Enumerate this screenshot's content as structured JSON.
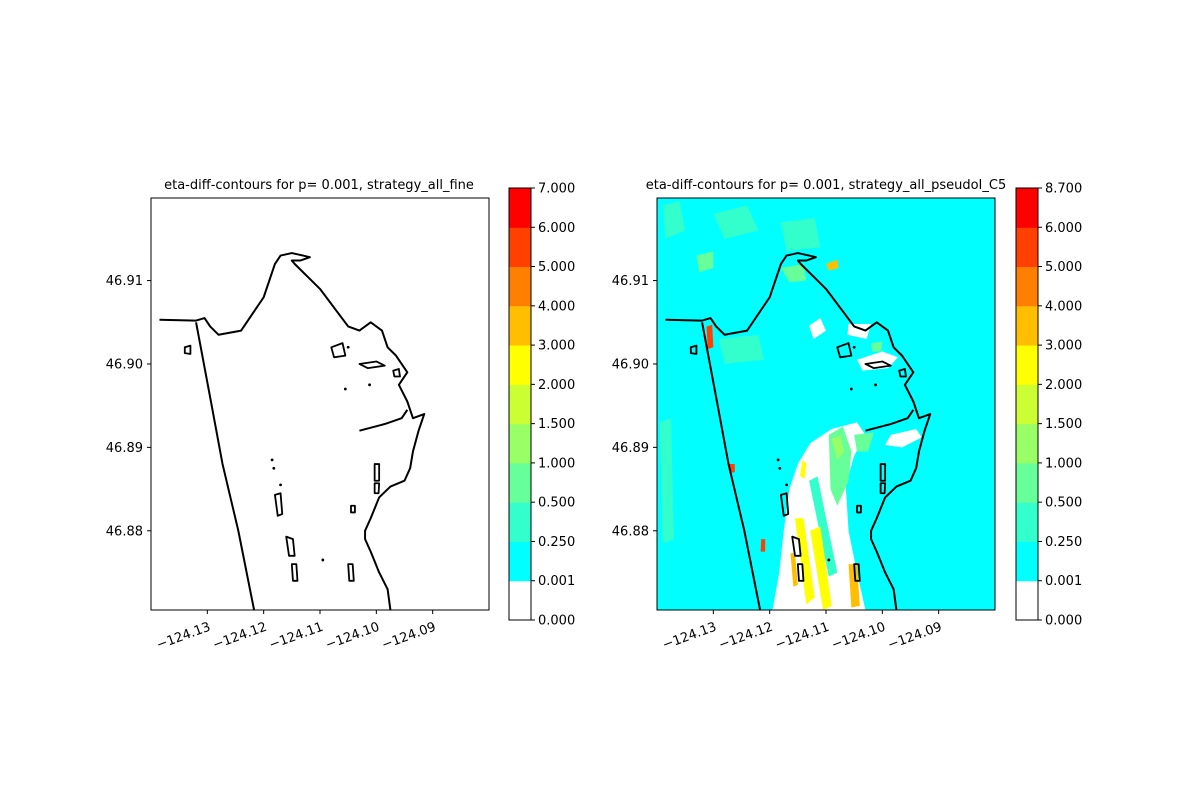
{
  "chart_data": [
    {
      "type": "heatmap",
      "title": "eta-diff-contours for p= 0.001, strategy_all_fine",
      "xlabel": "",
      "ylabel": "",
      "xlim": [
        -124.14,
        -124.08
      ],
      "ylim": [
        46.8705,
        46.9199
      ],
      "xticks": [
        -124.13,
        -124.12,
        -124.11,
        -124.1,
        -124.09
      ],
      "xtick_labels": [
        "−124.13",
        "−124.12",
        "−124.11",
        "−124.10",
        "−124.09"
      ],
      "yticks": [
        46.88,
        46.89,
        46.9,
        46.91
      ],
      "ytick_labels": [
        "46.88",
        "46.89",
        "46.90",
        "46.91"
      ],
      "colorbar": {
        "levels": [
          0.0,
          0.001,
          0.25,
          0.5,
          1.0,
          1.5,
          2.0,
          3.0,
          4.0,
          5.0,
          6.0,
          7.0
        ],
        "labels": [
          "0.000",
          "0.001",
          "0.250",
          "0.500",
          "1.000",
          "1.500",
          "2.000",
          "3.000",
          "4.000",
          "5.000",
          "6.000",
          "7.000"
        ],
        "colors": [
          "#ffffff",
          "#00ffff",
          "#33ffcc",
          "#66ff99",
          "#99ff66",
          "#ccff33",
          "#ffff00",
          "#ffbf00",
          "#ff7f00",
          "#ff4000",
          "#ff0000"
        ]
      },
      "background_level": 0.0,
      "regions": []
    },
    {
      "type": "heatmap",
      "title": "eta-diff-contours for p= 0.001, strategy_all_pseudoI_C5",
      "xlabel": "",
      "ylabel": "",
      "xlim": [
        -124.14,
        -124.08
      ],
      "ylim": [
        46.8705,
        46.9199
      ],
      "xticks": [
        -124.13,
        -124.12,
        -124.11,
        -124.1,
        -124.09
      ],
      "xtick_labels": [
        "−124.13",
        "−124.12",
        "−124.11",
        "−124.10",
        "−124.09"
      ],
      "yticks": [
        46.88,
        46.89,
        46.9,
        46.91
      ],
      "ytick_labels": [
        "46.88",
        "46.89",
        "46.90",
        "46.91"
      ],
      "colorbar": {
        "levels": [
          0.0,
          0.001,
          0.25,
          0.5,
          1.0,
          1.5,
          2.0,
          3.0,
          4.0,
          5.0,
          6.0,
          8.7
        ],
        "labels": [
          "0.000",
          "0.001",
          "0.250",
          "0.500",
          "1.000",
          "1.500",
          "2.000",
          "3.000",
          "4.000",
          "5.000",
          "6.000",
          "8.700"
        ],
        "colors": [
          "#ffffff",
          "#00ffff",
          "#33ffcc",
          "#66ff99",
          "#99ff66",
          "#ccff33",
          "#ffff00",
          "#ffbf00",
          "#ff7f00",
          "#ff4000",
          "#ff0000"
        ]
      },
      "background_level": 0.1,
      "regions": [
        {
          "level": 0.0,
          "points": [
            [
              -124.1195,
              46.8705
            ],
            [
              -124.1183,
              46.875
            ],
            [
              -124.1175,
              46.88
            ],
            [
              -124.1165,
              46.885
            ],
            [
              -124.115,
              46.888
            ],
            [
              -124.1128,
              46.8905
            ],
            [
              -124.109,
              46.8922
            ],
            [
              -124.1045,
              46.893
            ],
            [
              -124.103,
              46.8915
            ],
            [
              -124.105,
              46.889
            ],
            [
              -124.1065,
              46.8855
            ],
            [
              -124.106,
              46.88
            ],
            [
              -124.1045,
              46.875
            ],
            [
              -124.103,
              46.8705
            ]
          ]
        },
        {
          "level": 0.0,
          "points": [
            [
              -124.1045,
              46.9005
            ],
            [
              -124.1,
              46.9015
            ],
            [
              -124.0972,
              46.9008
            ],
            [
              -124.099,
              46.8995
            ],
            [
              -124.1035,
              46.8992
            ]
          ]
        },
        {
          "level": 0.0,
          "points": [
            [
              -124.0985,
              46.8915
            ],
            [
              -124.094,
              46.8922
            ],
            [
              -124.093,
              46.8912
            ],
            [
              -124.0965,
              46.89
            ],
            [
              -124.0995,
              46.8903
            ]
          ]
        },
        {
          "level": 0.0,
          "points": [
            [
              -124.106,
              46.9048
            ],
            [
              -124.102,
              46.9048
            ],
            [
              -124.1028,
              46.903
            ],
            [
              -124.1062,
              46.9035
            ]
          ]
        },
        {
          "level": 0.0,
          "points": [
            [
              -124.113,
              46.9046
            ],
            [
              -124.111,
              46.9055
            ],
            [
              -124.11,
              46.904
            ],
            [
              -124.1122,
              46.903
            ]
          ]
        },
        {
          "level": 0.25,
          "points": [
            [
              -124.139,
              46.919
            ],
            [
              -124.136,
              46.9195
            ],
            [
              -124.135,
              46.916
            ],
            [
              -124.1385,
              46.915
            ]
          ]
        },
        {
          "level": 0.25,
          "points": [
            [
              -124.13,
              46.918
            ],
            [
              -124.124,
              46.919
            ],
            [
              -124.122,
              46.916
            ],
            [
              -124.128,
              46.915
            ]
          ]
        },
        {
          "level": 0.25,
          "points": [
            [
              -124.118,
              46.917
            ],
            [
              -124.112,
              46.9175
            ],
            [
              -124.111,
              46.914
            ],
            [
              -124.117,
              46.9135
            ]
          ]
        },
        {
          "level": 0.25,
          "points": [
            [
              -124.129,
              46.903
            ],
            [
              -124.122,
              46.9035
            ],
            [
              -124.121,
              46.9005
            ],
            [
              -124.128,
              46.9
            ]
          ]
        },
        {
          "level": 0.25,
          "points": [
            [
              -124.1395,
              46.893
            ],
            [
              -124.1375,
              46.8935
            ],
            [
              -124.137,
              46.879
            ],
            [
              -124.139,
              46.8785
            ]
          ]
        },
        {
          "level": 0.25,
          "points": [
            [
              -124.113,
              46.886
            ],
            [
              -124.1115,
              46.8865
            ],
            [
              -124.108,
              46.875
            ],
            [
              -124.1095,
              46.8745
            ]
          ]
        },
        {
          "level": 0.5,
          "points": [
            [
              -124.1095,
              46.8915
            ],
            [
              -124.107,
              46.8925
            ],
            [
              -124.1055,
              46.8895
            ],
            [
              -124.106,
              46.886
            ],
            [
              -124.108,
              46.883
            ],
            [
              -124.1092,
              46.885
            ]
          ]
        },
        {
          "level": 0.5,
          "points": [
            [
              -124.105,
              46.8915
            ],
            [
              -124.1015,
              46.8918
            ],
            [
              -124.1025,
              46.8895
            ],
            [
              -124.1045,
              46.8895
            ]
          ]
        },
        {
          "level": 0.5,
          "points": [
            [
              -124.118,
              46.9115
            ],
            [
              -124.114,
              46.912
            ],
            [
              -124.1135,
              46.91
            ],
            [
              -124.1165,
              46.9098
            ]
          ]
        },
        {
          "level": 0.5,
          "points": [
            [
              -124.133,
              46.913
            ],
            [
              -124.13,
              46.9135
            ],
            [
              -124.13,
              46.9115
            ],
            [
              -124.1325,
              46.911
            ]
          ]
        },
        {
          "level": 0.5,
          "points": [
            [
              -124.102,
              46.9025
            ],
            [
              -124.1,
              46.9027
            ],
            [
              -124.1002,
              46.9015
            ],
            [
              -124.1018,
              46.9015
            ]
          ]
        },
        {
          "level": 1.0,
          "points": [
            [
              -124.109,
              46.891
            ],
            [
              -124.1075,
              46.8915
            ],
            [
              -124.1068,
              46.8895
            ],
            [
              -124.108,
              46.8885
            ]
          ]
        },
        {
          "level": 2.0,
          "points": [
            [
              -124.1155,
              46.8815
            ],
            [
              -124.114,
              46.8815
            ],
            [
              -124.112,
              46.872
            ],
            [
              -124.1135,
              46.8712
            ]
          ]
        },
        {
          "level": 2.0,
          "points": [
            [
              -124.1128,
              46.88
            ],
            [
              -124.111,
              46.8805
            ],
            [
              -124.109,
              46.871
            ],
            [
              -124.1105,
              46.8705
            ]
          ]
        },
        {
          "level": 2.0,
          "points": [
            [
              -124.1142,
              46.8885
            ],
            [
              -124.1135,
              46.888
            ],
            [
              -124.1138,
              46.8862
            ],
            [
              -124.1146,
              46.8866
            ]
          ]
        },
        {
          "level": 3.0,
          "points": [
            [
              -124.106,
              46.876
            ],
            [
              -124.1045,
              46.876
            ],
            [
              -124.104,
              46.871
            ],
            [
              -124.1055,
              46.8708
            ]
          ]
        },
        {
          "level": 3.0,
          "points": [
            [
              -124.1163,
              46.8773
            ],
            [
              -124.1155,
              46.8773
            ],
            [
              -124.115,
              46.8735
            ],
            [
              -124.1158,
              46.8733
            ]
          ]
        },
        {
          "level": 3.0,
          "points": [
            [
              -124.11,
              46.912
            ],
            [
              -124.108,
              46.9125
            ],
            [
              -124.1078,
              46.9115
            ],
            [
              -124.1095,
              46.9112
            ]
          ]
        },
        {
          "level": 5.0,
          "points": [
            [
              -124.1312,
              46.9045
            ],
            [
              -124.1302,
              46.9047
            ],
            [
              -124.13,
              46.902
            ],
            [
              -124.131,
              46.9018
            ]
          ]
        },
        {
          "level": 5.0,
          "points": [
            [
              -124.1273,
              46.888
            ],
            [
              -124.1262,
              46.888
            ],
            [
              -124.1262,
              46.887
            ],
            [
              -124.1272,
              46.887
            ]
          ]
        },
        {
          "level": 5.0,
          "points": [
            [
              -124.1215,
              46.879
            ],
            [
              -124.1208,
              46.879
            ],
            [
              -124.1208,
              46.8775
            ],
            [
              -124.1216,
              46.8775
            ]
          ]
        }
      ]
    }
  ],
  "coastline": {
    "outer_shore": [
      [
        -124.132,
        46.905
      ],
      [
        -124.1295,
        46.896
      ],
      [
        -124.1273,
        46.888
      ],
      [
        -124.1245,
        46.88
      ],
      [
        -124.1217,
        46.8705
      ]
    ],
    "peninsula": [
      [
        -124.1385,
        46.9053
      ],
      [
        -124.132,
        46.9052
      ],
      [
        -124.1305,
        46.9055
      ],
      [
        -124.1295,
        46.9045
      ],
      [
        -124.128,
        46.9035
      ],
      [
        -124.124,
        46.904
      ],
      [
        -124.12,
        46.908
      ],
      [
        -124.118,
        46.912
      ],
      [
        -124.117,
        46.913
      ],
      [
        -124.115,
        46.9133
      ],
      [
        -124.113,
        46.913
      ],
      [
        -124.1118,
        46.9128
      ],
      [
        -124.1135,
        46.9124
      ],
      [
        -124.115,
        46.9124
      ],
      [
        -124.1145,
        46.912
      ],
      [
        -124.11,
        46.909
      ],
      [
        -124.105,
        46.9045
      ],
      [
        -124.103,
        46.904
      ],
      [
        -124.101,
        46.905
      ],
      [
        -124.099,
        46.904
      ],
      [
        -124.098,
        46.902
      ],
      [
        -124.0965,
        46.901
      ],
      [
        -124.0945,
        46.899
      ],
      [
        -124.096,
        46.8975
      ],
      [
        -124.0945,
        46.8955
      ],
      [
        -124.0935,
        46.8935
      ],
      [
        -124.0915,
        46.894
      ],
      [
        -124.0925,
        46.892
      ],
      [
        -124.0935,
        46.8895
      ],
      [
        -124.094,
        46.8875
      ],
      [
        -124.095,
        46.886
      ],
      [
        -124.0975,
        46.8853
      ],
      [
        -124.0995,
        46.884
      ],
      [
        -124.101,
        46.8815
      ],
      [
        -124.102,
        46.88
      ],
      [
        -124.102,
        46.879
      ],
      [
        -124.101,
        46.8775
      ],
      [
        -124.0995,
        46.875
      ],
      [
        -124.098,
        46.873
      ],
      [
        -124.0975,
        46.8705
      ]
    ],
    "inner_ledge": [
      [
        -124.103,
        46.892
      ],
      [
        -124.0985,
        46.8928
      ],
      [
        -124.0955,
        46.8935
      ],
      [
        -124.0945,
        46.8945
      ]
    ],
    "islands": [
      [
        [
          -124.118,
          46.8843
        ],
        [
          -124.117,
          46.8845
        ],
        [
          -124.1167,
          46.882
        ],
        [
          -124.1175,
          46.8818
        ]
      ],
      [
        [
          -124.116,
          46.8793
        ],
        [
          -124.1148,
          46.879
        ],
        [
          -124.1145,
          46.877
        ],
        [
          -124.1155,
          46.877
        ]
      ],
      [
        [
          -124.115,
          46.876
        ],
        [
          -124.1142,
          46.876
        ],
        [
          -124.114,
          46.874
        ],
        [
          -124.1148,
          46.874
        ]
      ],
      [
        [
          -124.105,
          46.876
        ],
        [
          -124.1042,
          46.876
        ],
        [
          -124.104,
          46.874
        ],
        [
          -124.1048,
          46.874
        ]
      ],
      [
        [
          -124.1003,
          46.888
        ],
        [
          -124.0995,
          46.888
        ],
        [
          -124.0995,
          46.886
        ],
        [
          -124.1003,
          46.886
        ]
      ],
      [
        [
          -124.1003,
          46.8857
        ],
        [
          -124.0995,
          46.8857
        ],
        [
          -124.0996,
          46.8845
        ],
        [
          -124.1003,
          46.8845
        ]
      ],
      [
        [
          -124.134,
          46.902
        ],
        [
          -124.133,
          46.9022
        ],
        [
          -124.133,
          46.9012
        ],
        [
          -124.134,
          46.9013
        ]
      ],
      [
        [
          -124.103,
          46.9
        ],
        [
          -124.1,
          46.9003
        ],
        [
          -124.0985,
          46.8998
        ],
        [
          -124.1015,
          46.8995
        ]
      ],
      [
        [
          -124.097,
          46.8992
        ],
        [
          -124.096,
          46.8994
        ],
        [
          -124.0958,
          46.8985
        ],
        [
          -124.0968,
          46.8985
        ]
      ],
      [
        [
          -124.1045,
          46.883
        ],
        [
          -124.1038,
          46.883
        ],
        [
          -124.1038,
          46.8822
        ],
        [
          -124.1045,
          46.8822
        ]
      ],
      [
        [
          -124.108,
          46.902
        ],
        [
          -124.106,
          46.9025
        ],
        [
          -124.1055,
          46.901
        ],
        [
          -124.1075,
          46.9008
        ]
      ]
    ],
    "dots": [
      [
        -124.1185,
        46.8885
      ],
      [
        -124.1182,
        46.8875
      ],
      [
        -124.117,
        46.8855
      ],
      [
        -124.1055,
        46.897
      ],
      [
        -124.1095,
        46.8765
      ],
      [
        -124.105,
        46.902
      ],
      [
        -124.1012,
        46.8975
      ]
    ]
  }
}
